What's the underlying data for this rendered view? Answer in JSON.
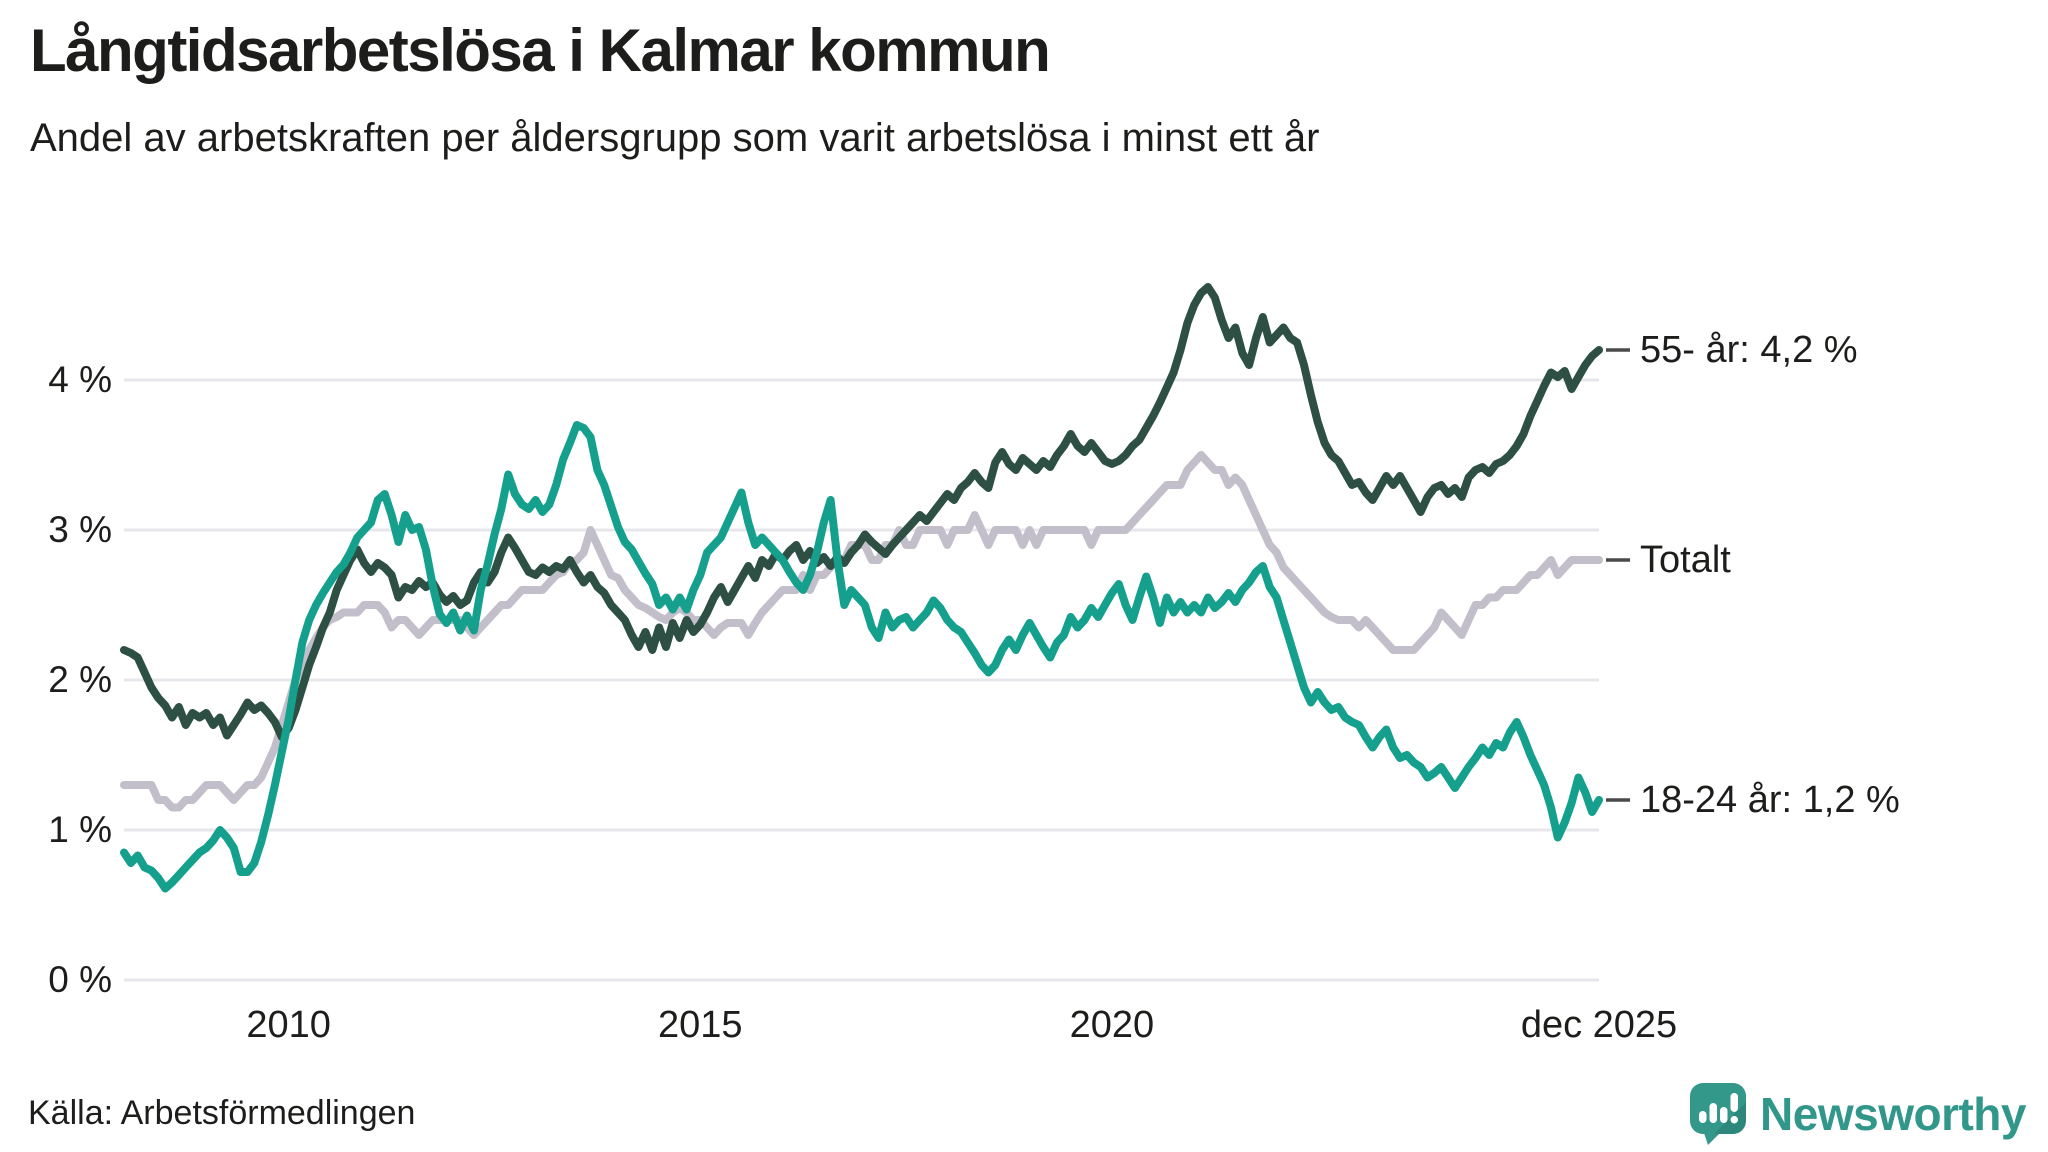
{
  "chart_data": {
    "type": "line",
    "title": "Långtidsarbetslösa i Kalmar kommun",
    "subtitle": "Andel av arbetskraften per åldersgrupp som varit arbetslösa i minst ett år",
    "unit": "%",
    "grid": true,
    "legend_position": "right-end-labels",
    "grid_color": "#e7e6eb",
    "annotation_tick_color": "#4a4a4a",
    "x_axis": {
      "range": [
        2008.0,
        2025.9167
      ],
      "ticks": [
        {
          "value": 2010,
          "label": "2010"
        },
        {
          "value": 2015,
          "label": "2015"
        },
        {
          "value": 2020,
          "label": "2020"
        },
        {
          "value": 2025.9167,
          "label": "dec 2025"
        }
      ]
    },
    "y_axis": {
      "range": [
        0,
        4.8
      ],
      "ticks": [
        {
          "value": 0,
          "label": "0 %"
        },
        {
          "value": 1,
          "label": "1 %"
        },
        {
          "value": 2,
          "label": "2 %"
        },
        {
          "value": 3,
          "label": "3 %"
        },
        {
          "value": 4,
          "label": "4 %"
        }
      ]
    },
    "x_start": 2008.0,
    "points_per_year": 12,
    "series": [
      {
        "name": "Totalt",
        "color": "#c2bfcb",
        "end_label": "Totalt",
        "end_value": 2.8,
        "values": [
          1.3,
          1.3,
          1.3,
          1.3,
          1.3,
          1.2,
          1.2,
          1.15,
          1.15,
          1.2,
          1.2,
          1.25,
          1.3,
          1.3,
          1.3,
          1.25,
          1.2,
          1.25,
          1.3,
          1.3,
          1.35,
          1.45,
          1.55,
          1.7,
          1.85,
          2.0,
          2.1,
          2.2,
          2.28,
          2.35,
          2.4,
          2.42,
          2.45,
          2.45,
          2.45,
          2.5,
          2.5,
          2.5,
          2.45,
          2.35,
          2.4,
          2.4,
          2.35,
          2.3,
          2.35,
          2.4,
          2.4,
          2.4,
          2.4,
          2.4,
          2.35,
          2.3,
          2.35,
          2.4,
          2.45,
          2.5,
          2.5,
          2.55,
          2.6,
          2.6,
          2.6,
          2.6,
          2.65,
          2.7,
          2.72,
          2.78,
          2.8,
          2.85,
          3.0,
          2.9,
          2.8,
          2.7,
          2.68,
          2.6,
          2.55,
          2.5,
          2.48,
          2.45,
          2.42,
          2.4,
          2.45,
          2.48,
          2.45,
          2.4,
          2.4,
          2.35,
          2.3,
          2.35,
          2.38,
          2.38,
          2.38,
          2.3,
          2.38,
          2.45,
          2.5,
          2.55,
          2.6,
          2.6,
          2.6,
          2.7,
          2.6,
          2.7,
          2.7,
          2.75,
          2.8,
          2.8,
          2.9,
          2.9,
          2.9,
          2.8,
          2.8,
          2.9,
          2.9,
          3.0,
          2.9,
          2.9,
          3.0,
          3.0,
          3.0,
          3.0,
          2.9,
          3.0,
          3.0,
          3.0,
          3.1,
          3.0,
          2.9,
          3.0,
          3.0,
          3.0,
          3.0,
          2.9,
          3.0,
          2.9,
          3.0,
          3.0,
          3.0,
          3.0,
          3.0,
          3.0,
          3.0,
          2.9,
          3.0,
          3.0,
          3.0,
          3.0,
          3.0,
          3.05,
          3.1,
          3.15,
          3.2,
          3.25,
          3.3,
          3.3,
          3.3,
          3.4,
          3.45,
          3.5,
          3.45,
          3.4,
          3.4,
          3.3,
          3.35,
          3.3,
          3.2,
          3.1,
          3.0,
          2.9,
          2.85,
          2.75,
          2.7,
          2.65,
          2.6,
          2.55,
          2.5,
          2.45,
          2.42,
          2.4,
          2.4,
          2.4,
          2.35,
          2.4,
          2.35,
          2.3,
          2.25,
          2.2,
          2.2,
          2.2,
          2.2,
          2.25,
          2.3,
          2.35,
          2.45,
          2.4,
          2.35,
          2.3,
          2.4,
          2.5,
          2.5,
          2.55,
          2.55,
          2.6,
          2.6,
          2.6,
          2.65,
          2.7,
          2.7,
          2.75,
          2.8,
          2.7,
          2.75,
          2.8,
          2.8,
          2.8,
          2.8,
          2.8
        ]
      },
      {
        "name": "55- år",
        "color": "#2d4f44",
        "end_label": "55- år: 4,2 %",
        "end_value": 4.2,
        "values": [
          2.2,
          2.18,
          2.15,
          2.05,
          1.95,
          1.88,
          1.83,
          1.75,
          1.82,
          1.7,
          1.78,
          1.75,
          1.78,
          1.7,
          1.75,
          1.63,
          1.7,
          1.77,
          1.85,
          1.8,
          1.83,
          1.78,
          1.72,
          1.62,
          1.68,
          1.8,
          1.95,
          2.1,
          2.22,
          2.35,
          2.45,
          2.6,
          2.7,
          2.8,
          2.87,
          2.78,
          2.72,
          2.78,
          2.75,
          2.7,
          2.55,
          2.62,
          2.6,
          2.66,
          2.62,
          2.65,
          2.57,
          2.52,
          2.56,
          2.5,
          2.53,
          2.65,
          2.72,
          2.65,
          2.72,
          2.85,
          2.95,
          2.88,
          2.8,
          2.72,
          2.7,
          2.75,
          2.72,
          2.76,
          2.74,
          2.8,
          2.72,
          2.65,
          2.7,
          2.62,
          2.58,
          2.5,
          2.45,
          2.4,
          2.3,
          2.22,
          2.32,
          2.2,
          2.35,
          2.22,
          2.38,
          2.28,
          2.4,
          2.32,
          2.37,
          2.45,
          2.55,
          2.62,
          2.52,
          2.6,
          2.68,
          2.76,
          2.68,
          2.8,
          2.76,
          2.84,
          2.8,
          2.86,
          2.9,
          2.8,
          2.86,
          2.78,
          2.82,
          2.76,
          2.82,
          2.78,
          2.85,
          2.9,
          2.97,
          2.92,
          2.88,
          2.84,
          2.9,
          2.95,
          3.0,
          3.05,
          3.1,
          3.06,
          3.12,
          3.18,
          3.24,
          3.2,
          3.28,
          3.32,
          3.38,
          3.32,
          3.28,
          3.45,
          3.52,
          3.44,
          3.4,
          3.48,
          3.44,
          3.4,
          3.46,
          3.42,
          3.5,
          3.56,
          3.64,
          3.56,
          3.52,
          3.58,
          3.52,
          3.46,
          3.44,
          3.46,
          3.5,
          3.56,
          3.6,
          3.68,
          3.76,
          3.85,
          3.95,
          4.05,
          4.2,
          4.38,
          4.5,
          4.58,
          4.62,
          4.55,
          4.4,
          4.28,
          4.35,
          4.18,
          4.1,
          4.28,
          4.42,
          4.25,
          4.3,
          4.35,
          4.28,
          4.25,
          4.1,
          3.9,
          3.72,
          3.58,
          3.5,
          3.46,
          3.38,
          3.3,
          3.32,
          3.25,
          3.2,
          3.28,
          3.36,
          3.3,
          3.36,
          3.28,
          3.2,
          3.12,
          3.22,
          3.28,
          3.3,
          3.24,
          3.28,
          3.22,
          3.35,
          3.4,
          3.42,
          3.38,
          3.44,
          3.46,
          3.5,
          3.56,
          3.64,
          3.76,
          3.86,
          3.96,
          4.05,
          4.02,
          4.06,
          3.94,
          4.02,
          4.1,
          4.16,
          4.2
        ]
      },
      {
        "name": "18-24 år",
        "color": "#14a08d",
        "end_label": "18-24 år: 1,2 %",
        "end_value": 1.2,
        "values": [
          0.85,
          0.78,
          0.83,
          0.75,
          0.73,
          0.68,
          0.61,
          0.65,
          0.7,
          0.75,
          0.8,
          0.85,
          0.88,
          0.93,
          1.0,
          0.95,
          0.88,
          0.72,
          0.72,
          0.78,
          0.92,
          1.1,
          1.3,
          1.52,
          1.74,
          2.0,
          2.25,
          2.4,
          2.5,
          2.58,
          2.65,
          2.72,
          2.77,
          2.85,
          2.95,
          3.0,
          3.05,
          3.2,
          3.24,
          3.1,
          2.92,
          3.1,
          3.0,
          3.02,
          2.87,
          2.63,
          2.44,
          2.38,
          2.45,
          2.33,
          2.43,
          2.33,
          2.6,
          2.77,
          2.97,
          3.14,
          3.37,
          3.24,
          3.17,
          3.14,
          3.2,
          3.12,
          3.17,
          3.3,
          3.47,
          3.58,
          3.7,
          3.68,
          3.62,
          3.4,
          3.3,
          3.16,
          3.02,
          2.92,
          2.87,
          2.79,
          2.71,
          2.64,
          2.5,
          2.55,
          2.47,
          2.55,
          2.47,
          2.6,
          2.7,
          2.85,
          2.9,
          2.95,
          3.05,
          3.15,
          3.25,
          3.05,
          2.9,
          2.95,
          2.9,
          2.85,
          2.8,
          2.72,
          2.65,
          2.6,
          2.7,
          2.85,
          3.05,
          3.2,
          2.8,
          2.5,
          2.6,
          2.55,
          2.5,
          2.35,
          2.28,
          2.45,
          2.35,
          2.4,
          2.42,
          2.35,
          2.4,
          2.45,
          2.53,
          2.48,
          2.4,
          2.35,
          2.32,
          2.25,
          2.18,
          2.1,
          2.05,
          2.1,
          2.2,
          2.27,
          2.2,
          2.3,
          2.38,
          2.3,
          2.22,
          2.15,
          2.25,
          2.3,
          2.42,
          2.35,
          2.4,
          2.48,
          2.42,
          2.5,
          2.58,
          2.64,
          2.5,
          2.4,
          2.55,
          2.69,
          2.55,
          2.38,
          2.55,
          2.45,
          2.52,
          2.45,
          2.5,
          2.45,
          2.55,
          2.48,
          2.52,
          2.58,
          2.52,
          2.6,
          2.65,
          2.72,
          2.76,
          2.62,
          2.55,
          2.4,
          2.25,
          2.1,
          1.95,
          1.85,
          1.92,
          1.85,
          1.8,
          1.82,
          1.75,
          1.72,
          1.7,
          1.62,
          1.55,
          1.62,
          1.67,
          1.55,
          1.48,
          1.5,
          1.45,
          1.42,
          1.35,
          1.38,
          1.42,
          1.35,
          1.28,
          1.35,
          1.42,
          1.48,
          1.55,
          1.5,
          1.58,
          1.55,
          1.65,
          1.72,
          1.62,
          1.5,
          1.4,
          1.3,
          1.15,
          0.95,
          1.05,
          1.18,
          1.35,
          1.25,
          1.12,
          1.2
        ]
      }
    ]
  },
  "source": {
    "label": "Källa: Arbetsförmedlingen"
  },
  "logo": {
    "text": "Newsworthy",
    "color": "#31978a",
    "icon_color": "#33988a"
  }
}
